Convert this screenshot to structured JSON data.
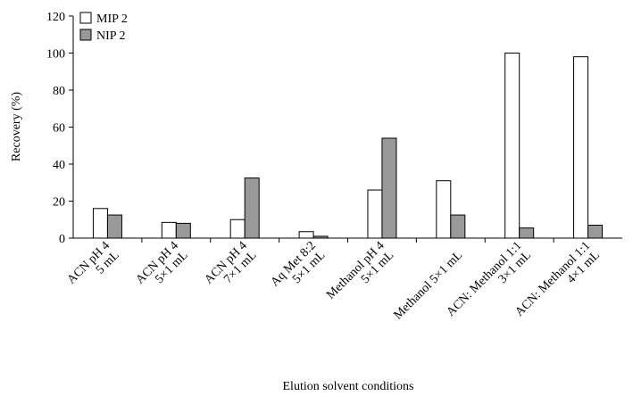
{
  "chart_data": {
    "type": "bar",
    "categories": [
      "ACN pH 4\n5 mL",
      "ACN pH 4\n5×1 mL",
      "ACN pH 4\n7×1 mL",
      "Aq Met 8:2\n5×1 mL",
      "Methanol pH 4\n5×1 mL",
      "Methanol 5×1 mL",
      "ACN: Methanol 1:1\n3×1 mL",
      "ACN: Methanol 1:1\n4×1 mL"
    ],
    "series": [
      {
        "name": "MIP 2",
        "color": "#ffffff",
        "values": [
          16,
          8.5,
          10,
          3.5,
          26,
          31,
          100,
          98
        ]
      },
      {
        "name": "NIP 2",
        "color": "#999999",
        "values": [
          12.5,
          8,
          32.5,
          1,
          54,
          12.5,
          5.5,
          7
        ]
      }
    ],
    "ylabel": "Recovery (%)",
    "xlabel": "Elution solvent conditions",
    "ylim": [
      0,
      120
    ],
    "yticks": [
      0,
      20,
      40,
      60,
      80,
      100,
      120
    ],
    "grid": false,
    "legend": "upper left"
  }
}
